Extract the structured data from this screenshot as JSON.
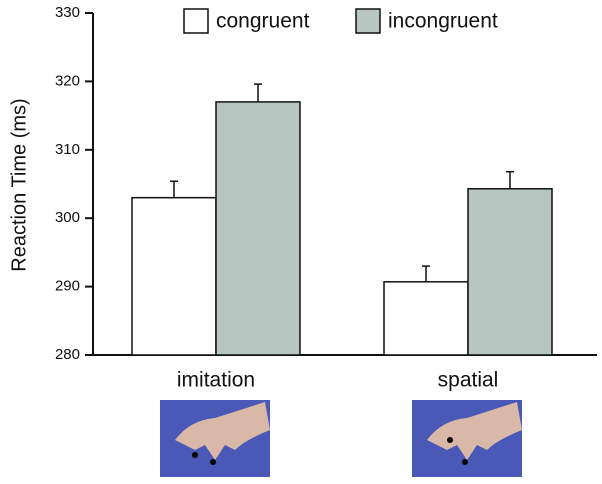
{
  "chart_data": {
    "type": "bar",
    "y_label": "Reaction Time (ms)",
    "categories": [
      "imitation",
      "spatial"
    ],
    "series": [
      {
        "name": "congruent",
        "color": "#ffffff",
        "values": [
          303,
          290.7
        ],
        "errors": [
          2.4,
          2.3
        ]
      },
      {
        "name": "incongruent",
        "color": "#b8c6c2",
        "values": [
          317,
          304.3
        ],
        "errors": [
          2.6,
          2.5
        ]
      }
    ],
    "ylim": [
      280,
      330
    ],
    "yticks": [
      280,
      290,
      300,
      310,
      320,
      330
    ]
  }
}
